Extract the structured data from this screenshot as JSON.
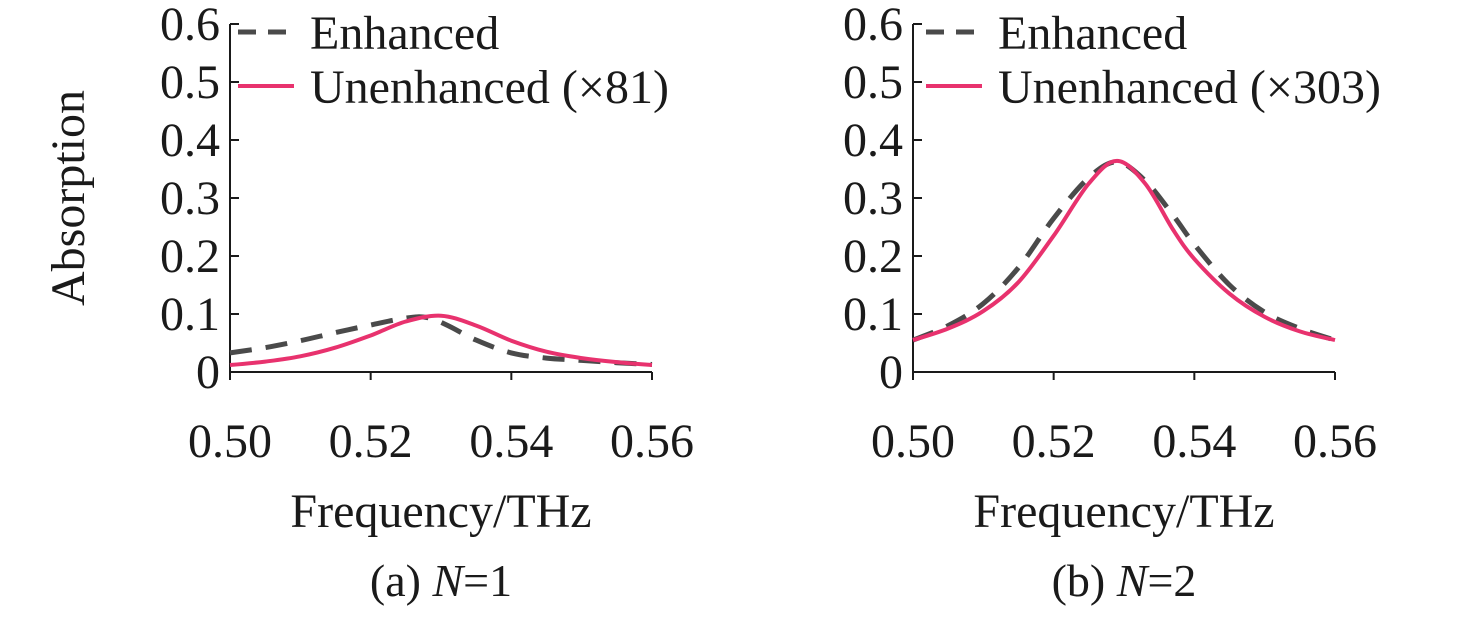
{
  "colors": {
    "enhanced": "#4a4a4a",
    "unenhanced": "#e8326e",
    "axis": "#1a1a1a"
  },
  "chart_data": [
    {
      "type": "line",
      "caption_prefix": "(a) ",
      "caption_var": "N",
      "caption_suffix": "=1",
      "xlabel": "Frequency/THz",
      "ylabel": "Absorption",
      "xlim": [
        0.5,
        0.56
      ],
      "ylim": [
        0,
        0.6
      ],
      "xticks": [
        "0.50",
        "0.52",
        "0.54",
        "0.56"
      ],
      "yticks": [
        "0",
        "0.1",
        "0.2",
        "0.3",
        "0.4",
        "0.5",
        "0.6"
      ],
      "grid": false,
      "legend_position": "top-left",
      "series": [
        {
          "name": "Enhanced",
          "style": "dashed",
          "x": [
            0.5,
            0.505,
            0.51,
            0.515,
            0.52,
            0.525,
            0.528,
            0.531,
            0.535,
            0.54,
            0.545,
            0.55,
            0.555,
            0.56
          ],
          "y": [
            0.033,
            0.042,
            0.054,
            0.068,
            0.081,
            0.093,
            0.094,
            0.08,
            0.055,
            0.033,
            0.024,
            0.02,
            0.016,
            0.013
          ]
        },
        {
          "name": "Unenhanced (×81)",
          "style": "solid",
          "x": [
            0.5,
            0.505,
            0.51,
            0.515,
            0.52,
            0.525,
            0.53,
            0.535,
            0.54,
            0.545,
            0.55,
            0.555,
            0.56
          ],
          "y": [
            0.012,
            0.018,
            0.027,
            0.042,
            0.063,
            0.087,
            0.097,
            0.08,
            0.054,
            0.035,
            0.024,
            0.017,
            0.012
          ]
        }
      ]
    },
    {
      "type": "line",
      "caption_prefix": "(b) ",
      "caption_var": "N",
      "caption_suffix": "=2",
      "xlabel": "Frequency/THz",
      "ylabel": "",
      "xlim": [
        0.5,
        0.56
      ],
      "ylim": [
        0,
        0.6
      ],
      "xticks": [
        "0.50",
        "0.52",
        "0.54",
        "0.56"
      ],
      "yticks": [
        "0",
        "0.1",
        "0.2",
        "0.3",
        "0.4",
        "0.5",
        "0.6"
      ],
      "grid": false,
      "legend_position": "top-left",
      "series": [
        {
          "name": "Enhanced",
          "style": "dashed",
          "x": [
            0.5,
            0.505,
            0.51,
            0.515,
            0.52,
            0.525,
            0.529,
            0.533,
            0.537,
            0.54,
            0.545,
            0.55,
            0.555,
            0.56
          ],
          "y": [
            0.055,
            0.08,
            0.118,
            0.18,
            0.265,
            0.335,
            0.362,
            0.33,
            0.27,
            0.22,
            0.15,
            0.103,
            0.075,
            0.055
          ]
        },
        {
          "name": "Unenhanced (×303)",
          "style": "solid",
          "x": [
            0.5,
            0.505,
            0.51,
            0.515,
            0.52,
            0.525,
            0.529,
            0.533,
            0.537,
            0.54,
            0.545,
            0.55,
            0.555,
            0.56
          ],
          "y": [
            0.055,
            0.075,
            0.105,
            0.155,
            0.235,
            0.325,
            0.364,
            0.325,
            0.245,
            0.195,
            0.135,
            0.095,
            0.07,
            0.055
          ]
        }
      ]
    }
  ]
}
